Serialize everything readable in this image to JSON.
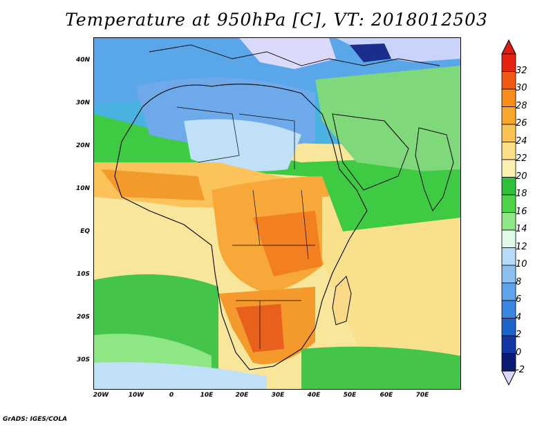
{
  "title": "Temperature at 950hPa [C], VT: 2018012503",
  "footer": "GrADS: IGES/COLA",
  "lat_labels": [
    "40N",
    "30N",
    "20N",
    "10N",
    "EQ",
    "10S",
    "20S",
    "30S"
  ],
  "lon_labels": [
    "20W",
    "10W",
    "0",
    "10E",
    "20E",
    "30E",
    "40E",
    "50E",
    "60E",
    "70E"
  ],
  "colorbar": {
    "labels": [
      "32",
      "30",
      "28",
      "26",
      "24",
      "22",
      "20",
      "18",
      "16",
      "14",
      "12",
      "10",
      "8",
      "6",
      "4",
      "2",
      "0",
      "-2"
    ],
    "colors": [
      "#e62310",
      "#f05a14",
      "#f88c1a",
      "#f8a62c",
      "#fac155",
      "#fadf86",
      "#f9f1b0",
      "#2fbf3a",
      "#4ed449",
      "#8ee684",
      "#dffae8",
      "#b5dbf7",
      "#8ac1f0",
      "#5fa4ea",
      "#3a86e0",
      "#1f63cc",
      "#1238a4",
      "#0b1a72"
    ],
    "over_color": "#e01b10",
    "under_color": "#dcdafc"
  }
}
